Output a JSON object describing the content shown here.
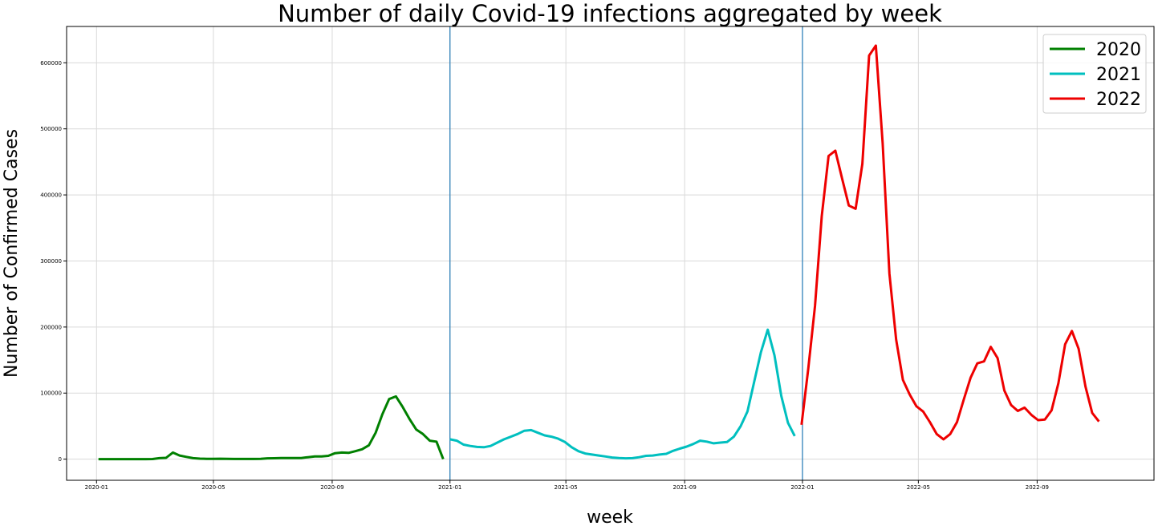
{
  "chart_data": {
    "type": "line",
    "title": "Number of daily Covid-19 infections aggregated by week",
    "xlabel": "week",
    "ylabel": "Number of Confirmed Cases",
    "xlim": [
      "2019-12-01",
      "2022-12-31"
    ],
    "ylim": [
      -32000,
      655000
    ],
    "grid": true,
    "legend_position": "top-right",
    "x_ticks": [
      "2020-01",
      "2020-05",
      "2020-09",
      "2021-01",
      "2021-05",
      "2021-09",
      "2022-01",
      "2022-05",
      "2022-09"
    ],
    "y_ticks": [
      0,
      100000,
      200000,
      300000,
      400000,
      500000,
      600000
    ],
    "vlines": [
      "2021-01-01",
      "2022-01-01"
    ],
    "vline_color": "#1f77b4",
    "series": [
      {
        "name": "2020",
        "color": "#008000",
        "x": [
          "2020-01-03",
          "2020-01-10",
          "2020-01-17",
          "2020-01-24",
          "2020-01-31",
          "2020-02-07",
          "2020-02-14",
          "2020-02-21",
          "2020-02-28",
          "2020-03-06",
          "2020-03-13",
          "2020-03-20",
          "2020-03-27",
          "2020-04-03",
          "2020-04-10",
          "2020-04-17",
          "2020-04-24",
          "2020-05-01",
          "2020-05-08",
          "2020-05-15",
          "2020-05-22",
          "2020-05-29",
          "2020-06-05",
          "2020-06-12",
          "2020-06-19",
          "2020-06-26",
          "2020-07-03",
          "2020-07-10",
          "2020-07-17",
          "2020-07-24",
          "2020-07-31",
          "2020-08-07",
          "2020-08-14",
          "2020-08-21",
          "2020-08-28",
          "2020-09-04",
          "2020-09-11",
          "2020-09-18",
          "2020-09-25",
          "2020-10-02",
          "2020-10-09",
          "2020-10-16",
          "2020-10-23",
          "2020-10-30",
          "2020-11-06",
          "2020-11-13",
          "2020-11-20",
          "2020-11-27",
          "2020-12-04",
          "2020-12-11",
          "2020-12-18",
          "2020-12-25"
        ],
        "y": [
          0,
          0,
          0,
          0,
          0,
          0,
          0,
          0,
          200,
          1500,
          2000,
          10000,
          5500,
          3500,
          1500,
          800,
          500,
          500,
          600,
          400,
          300,
          300,
          300,
          300,
          500,
          1200,
          1400,
          1600,
          1800,
          1700,
          1800,
          3000,
          4000,
          4000,
          5000,
          9000,
          10000,
          9500,
          12000,
          15000,
          21000,
          40000,
          68000,
          91000,
          95000,
          79000,
          61000,
          45000,
          38000,
          28000,
          26500,
          0
        ]
      },
      {
        "name": "2021",
        "color": "#00bfbf",
        "x": [
          "2021-01-01",
          "2021-01-08",
          "2021-01-15",
          "2021-01-22",
          "2021-01-29",
          "2021-02-05",
          "2021-02-12",
          "2021-02-19",
          "2021-02-26",
          "2021-03-05",
          "2021-03-12",
          "2021-03-19",
          "2021-03-26",
          "2021-04-02",
          "2021-04-09",
          "2021-04-16",
          "2021-04-23",
          "2021-04-30",
          "2021-05-07",
          "2021-05-14",
          "2021-05-21",
          "2021-05-28",
          "2021-06-04",
          "2021-06-11",
          "2021-06-18",
          "2021-06-25",
          "2021-07-02",
          "2021-07-09",
          "2021-07-16",
          "2021-07-23",
          "2021-07-30",
          "2021-08-06",
          "2021-08-13",
          "2021-08-20",
          "2021-08-27",
          "2021-09-03",
          "2021-09-10",
          "2021-09-17",
          "2021-09-24",
          "2021-10-01",
          "2021-10-08",
          "2021-10-15",
          "2021-10-22",
          "2021-10-29",
          "2021-11-05",
          "2021-11-12",
          "2021-11-19",
          "2021-11-26",
          "2021-12-03",
          "2021-12-10",
          "2021-12-17",
          "2021-12-24"
        ],
        "y": [
          30000,
          28000,
          22000,
          20000,
          18500,
          18000,
          20000,
          25000,
          30000,
          34000,
          38000,
          43000,
          44000,
          40000,
          36000,
          34000,
          31000,
          26000,
          18000,
          12000,
          8500,
          7000,
          5500,
          4000,
          2500,
          1600,
          1200,
          1500,
          3000,
          5000,
          5500,
          7000,
          8000,
          12500,
          16000,
          19000,
          23000,
          28000,
          26500,
          24000,
          25000,
          26000,
          34000,
          50000,
          72000,
          117000,
          162000,
          196000,
          157000,
          96000,
          55000,
          35000
        ]
      },
      {
        "name": "2022",
        "color": "#ee0000",
        "x": [
          "2021-12-31",
          "2022-01-07",
          "2022-01-14",
          "2022-01-21",
          "2022-01-28",
          "2022-02-04",
          "2022-02-11",
          "2022-02-18",
          "2022-02-25",
          "2022-03-04",
          "2022-03-11",
          "2022-03-18",
          "2022-03-25",
          "2022-04-01",
          "2022-04-08",
          "2022-04-15",
          "2022-04-22",
          "2022-04-29",
          "2022-05-06",
          "2022-05-13",
          "2022-05-20",
          "2022-05-27",
          "2022-06-03",
          "2022-06-10",
          "2022-06-17",
          "2022-06-24",
          "2022-07-01",
          "2022-07-08",
          "2022-07-15",
          "2022-07-22",
          "2022-07-29",
          "2022-08-05",
          "2022-08-12",
          "2022-08-19",
          "2022-08-26",
          "2022-09-02",
          "2022-09-09",
          "2022-09-16",
          "2022-09-23",
          "2022-09-30",
          "2022-10-07",
          "2022-10-14",
          "2022-10-21",
          "2022-10-28",
          "2022-11-04"
        ],
        "y": [
          52000,
          137000,
          232000,
          368000,
          459000,
          467000,
          425000,
          384000,
          379000,
          447000,
          611000,
          626000,
          478000,
          281000,
          181000,
          120000,
          98000,
          80000,
          72000,
          56000,
          38000,
          30000,
          38000,
          56000,
          90000,
          123000,
          145000,
          148000,
          170000,
          153000,
          104000,
          82000,
          73000,
          78000,
          67000,
          59000,
          60000,
          74000,
          115000,
          174000,
          194000,
          167000,
          110000,
          70000,
          57000
        ]
      }
    ]
  }
}
